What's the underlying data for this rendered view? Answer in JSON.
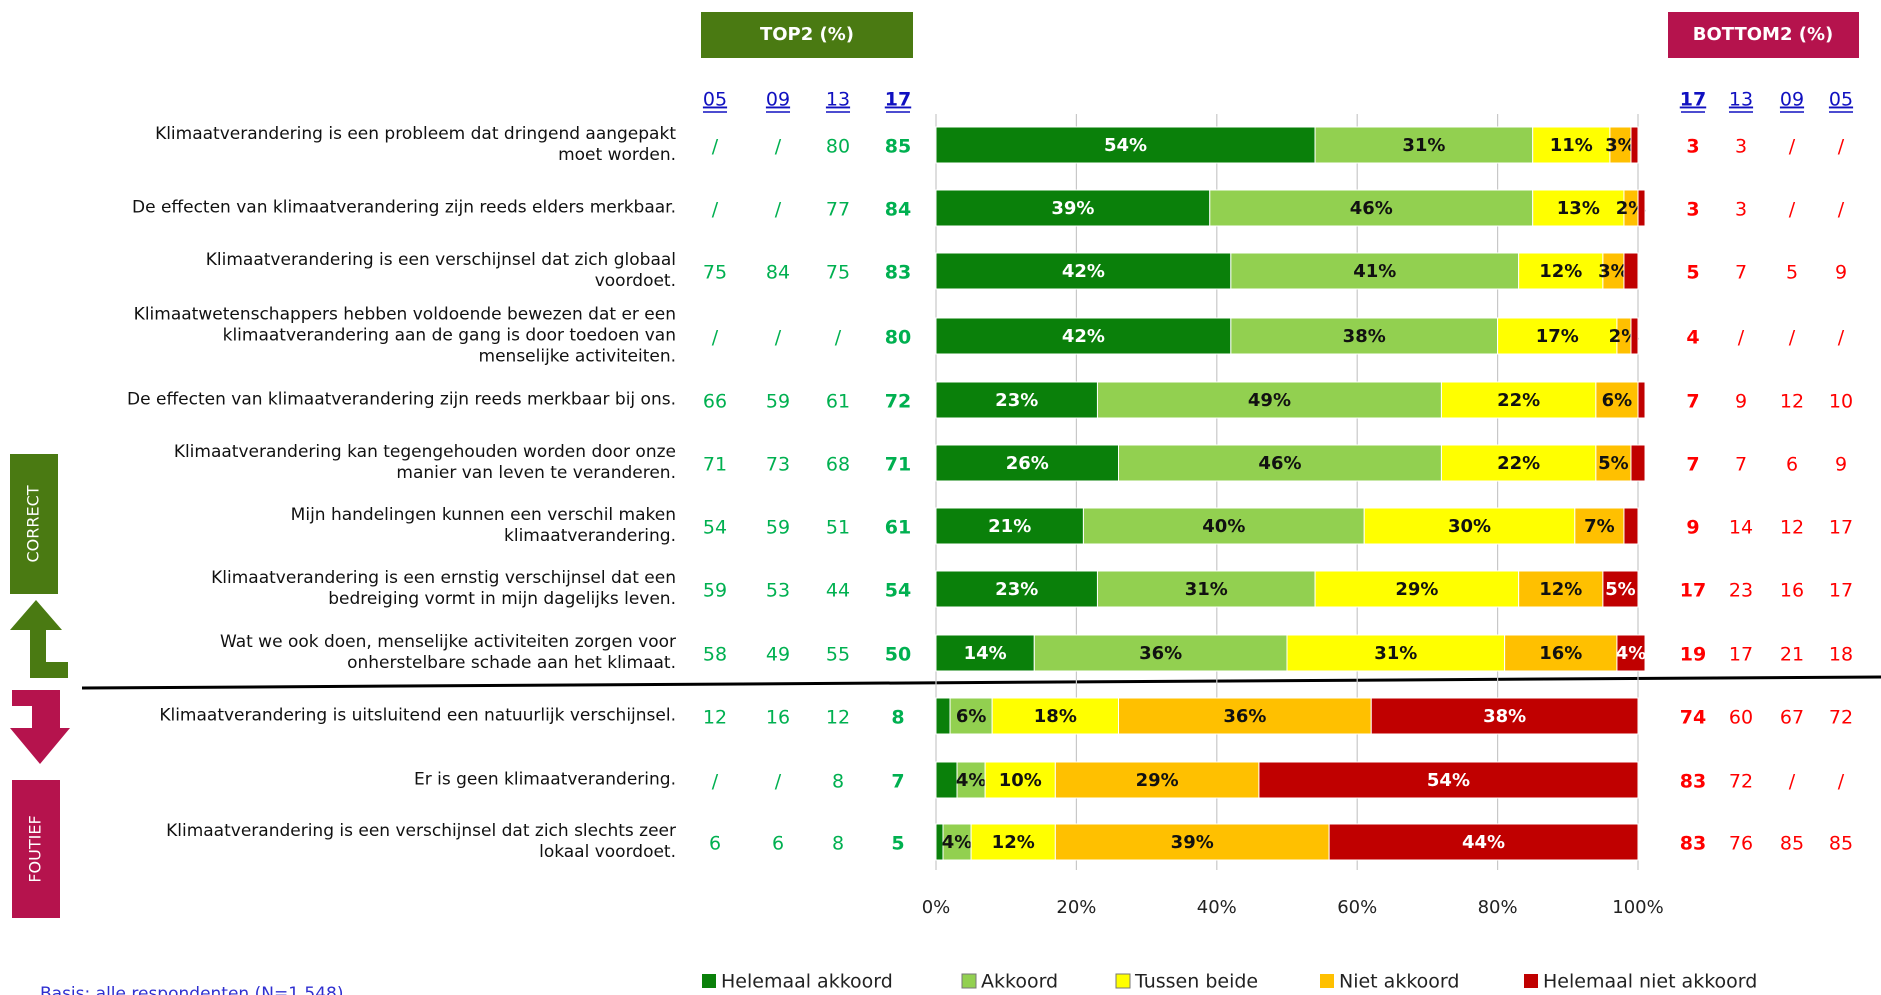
{
  "chart_data": {
    "type": "stacked-bar-horizontal",
    "categories": [
      "Klimaatverandering is een probleem dat dringend aangepakt\nmoet worden.",
      "De effecten van klimaatverandering zijn reeds elders merkbaar.",
      "Klimaatverandering is een verschijnsel dat zich globaal\nvoordoet.",
      "Klimaatwetenschappers hebben voldoende bewezen dat er een\nklimaatverandering aan de gang is door toedoen van\nmenselijke activiteiten.",
      "De effecten van klimaatverandering zijn reeds merkbaar bij ons.",
      "Klimaatverandering kan tegengehouden worden door onze\nmanier van leven te veranderen.",
      "Mijn handelingen kunnen een verschil maken\nklimaatverandering.",
      "Klimaatverandering is een ernstig verschijnsel dat een\nbedreiging vormt in mijn dagelijks leven.",
      "Wat we ook doen, menselijke activiteiten zorgen voor\nonherstelbare schade aan het klimaat.",
      "Klimaatverandering is uitsluitend een natuurlijk verschijnsel.",
      "Er is geen klimaatverandering.",
      "Klimaatverandering is een verschijnsel dat zich slechts zeer\nlokaal voordoet."
    ],
    "series": [
      {
        "name": "Helemaal akkoord",
        "color": "#0a800a",
        "values": [
          54,
          39,
          42,
          42,
          23,
          26,
          21,
          23,
          14,
          2,
          3,
          1
        ],
        "value_labels": [
          "54%",
          "39%",
          "42%",
          "42%",
          "23%",
          "26%",
          "21%",
          "23%",
          "14%",
          null,
          null,
          null
        ]
      },
      {
        "name": "Akkoord",
        "color": "#92d050",
        "values": [
          31,
          46,
          41,
          38,
          49,
          46,
          40,
          31,
          36,
          6,
          4,
          4
        ],
        "value_labels": [
          "31%",
          "46%",
          "41%",
          "38%",
          "49%",
          "46%",
          "40%",
          "31%",
          "36%",
          "6%",
          "4%",
          "4%"
        ]
      },
      {
        "name": "Tussen beide",
        "color": "#ffff00",
        "values": [
          11,
          13,
          12,
          17,
          22,
          22,
          30,
          29,
          31,
          18,
          10,
          12
        ],
        "value_labels": [
          "11%",
          "13%",
          "12%",
          "17%",
          "22%",
          "22%",
          "30%",
          "29%",
          "31%",
          "18%",
          "10%",
          "12%"
        ]
      },
      {
        "name": "Niet akkoord",
        "color": "#ffc000",
        "values": [
          3,
          2,
          3,
          2,
          6,
          5,
          7,
          12,
          16,
          36,
          29,
          39
        ],
        "value_labels": [
          "3%",
          "2%",
          "3%",
          "2%",
          "6%",
          "5%",
          "7%",
          "12%",
          "16%",
          "36%",
          "29%",
          "39%"
        ]
      },
      {
        "name": "Helemaal niet akkoord",
        "color": "#c00000",
        "values": [
          1,
          1,
          2,
          1,
          1,
          2,
          2,
          5,
          4,
          38,
          54,
          44
        ],
        "value_labels": [
          null,
          null,
          null,
          null,
          null,
          null,
          null,
          "5%",
          "4%",
          "38%",
          "54%",
          "44%"
        ]
      }
    ],
    "xlim": [
      0,
      100
    ],
    "xticks": [
      {
        "value": 0,
        "label": "0%"
      },
      {
        "value": 20,
        "label": "20%"
      },
      {
        "value": 40,
        "label": "40%"
      },
      {
        "value": 60,
        "label": "60%"
      },
      {
        "value": 80,
        "label": "80%"
      },
      {
        "value": 100,
        "label": "100%"
      }
    ],
    "grid": true,
    "legend": "bottom"
  },
  "top2": {
    "title": "TOP2 (%)",
    "columns": [
      "05",
      "09",
      "13",
      "17"
    ],
    "rows": [
      [
        "/",
        "/",
        "80",
        "85"
      ],
      [
        "/",
        "/",
        "77",
        "84"
      ],
      [
        "75",
        "84",
        "75",
        "83"
      ],
      [
        "/",
        "/",
        "/",
        "80"
      ],
      [
        "66",
        "59",
        "61",
        "72"
      ],
      [
        "71",
        "73",
        "68",
        "71"
      ],
      [
        "54",
        "59",
        "51",
        "61"
      ],
      [
        "59",
        "53",
        "44",
        "54"
      ],
      [
        "58",
        "49",
        "55",
        "50"
      ],
      [
        "12",
        "16",
        "12",
        "8"
      ],
      [
        "/",
        "/",
        "8",
        "7"
      ],
      [
        "6",
        "6",
        "8",
        "5"
      ]
    ]
  },
  "bottom2": {
    "title": "BOTTOM2 (%)",
    "columns": [
      "17",
      "13",
      "09",
      "05"
    ],
    "rows": [
      [
        "3",
        "3",
        "/",
        "/"
      ],
      [
        "3",
        "3",
        "/",
        "/"
      ],
      [
        "5",
        "7",
        "5",
        "9"
      ],
      [
        "4",
        "/",
        "/",
        "/"
      ],
      [
        "7",
        "9",
        "12",
        "10"
      ],
      [
        "7",
        "7",
        "6",
        "9"
      ],
      [
        "9",
        "14",
        "12",
        "17"
      ],
      [
        "17",
        "23",
        "16",
        "17"
      ],
      [
        "19",
        "17",
        "21",
        "18"
      ],
      [
        "74",
        "60",
        "67",
        "72"
      ],
      [
        "83",
        "72",
        "/",
        "/"
      ],
      [
        "83",
        "76",
        "85",
        "85"
      ]
    ]
  },
  "groups": {
    "correct": "CORRECT",
    "incorrect": "FOUTIEF"
  },
  "footnote": "Basis: alle respondenten (N=1.548)"
}
